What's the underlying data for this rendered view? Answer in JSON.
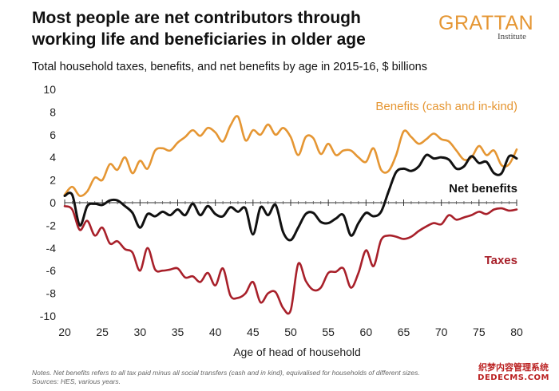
{
  "header": {
    "title_line1": "Most people are net contributors through",
    "title_line2": "working life and beneficiaries in older age",
    "logo_main": "GRATTAN",
    "logo_sub": "Institute"
  },
  "subtitle": "Total household taxes, benefits, and net benefits by age in 2015-16, $ billions",
  "notes_line1": "Notes. Net benefits refers to all tax paid minus all social transfers (cash and in kind), equivalised for households of different sizes.",
  "notes_line2": "Sources: HES, various years.",
  "watermark_line1": "织梦内容管理系统",
  "watermark_line2": "DEDECMS.COM",
  "chart_data": {
    "type": "line",
    "title": "Total household taxes, benefits, and net benefits by age in 2015-16, $ billions",
    "xlabel": "Age of head of household",
    "ylabel": "",
    "xlim": [
      20,
      80
    ],
    "ylim": [
      -10,
      10
    ],
    "xticks": [
      20,
      25,
      30,
      35,
      40,
      45,
      50,
      55,
      60,
      65,
      70,
      75,
      80
    ],
    "yticks": [
      10,
      8,
      6,
      4,
      2,
      0,
      -2,
      -4,
      -6,
      -8,
      -10
    ],
    "grid": "vertical ticks at zero line",
    "x": [
      20,
      21,
      22,
      23,
      24,
      25,
      26,
      27,
      28,
      29,
      30,
      31,
      32,
      33,
      34,
      35,
      36,
      37,
      38,
      39,
      40,
      41,
      42,
      43,
      44,
      45,
      46,
      47,
      48,
      49,
      50,
      51,
      52,
      53,
      54,
      55,
      56,
      57,
      58,
      59,
      60,
      61,
      62,
      63,
      64,
      65,
      66,
      67,
      68,
      69,
      70,
      71,
      72,
      73,
      74,
      75,
      76,
      77,
      78,
      79,
      80
    ],
    "series": [
      {
        "name": "Benefits (cash and in-kind)",
        "color": "#e59633",
        "values": [
          0.7,
          1.4,
          0.6,
          1.0,
          2.2,
          2.0,
          3.4,
          2.9,
          4.0,
          2.6,
          3.7,
          3.0,
          4.6,
          4.8,
          4.6,
          5.3,
          5.8,
          6.4,
          5.9,
          6.6,
          6.2,
          5.4,
          6.8,
          7.6,
          5.5,
          6.4,
          6.0,
          6.9,
          6.0,
          6.6,
          5.8,
          4.2,
          5.8,
          5.7,
          4.3,
          5.2,
          4.2,
          4.6,
          4.6,
          4.0,
          3.6,
          4.8,
          2.9,
          2.8,
          4.2,
          6.3,
          5.8,
          5.2,
          5.6,
          6.1,
          5.6,
          5.4,
          4.6,
          3.8,
          4.0,
          5.0,
          4.2,
          4.6,
          3.3,
          3.4,
          4.7
        ]
      },
      {
        "name": "Net benefits",
        "color": "#111111",
        "values": [
          0.6,
          0.7,
          -2.0,
          -0.3,
          -0.1,
          -0.2,
          0.2,
          0.2,
          -0.3,
          -0.9,
          -2.2,
          -1.0,
          -1.2,
          -0.8,
          -1.1,
          -0.6,
          -1.1,
          -0.1,
          -1.1,
          -0.3,
          -1.0,
          -1.2,
          -0.4,
          -0.8,
          -0.5,
          -2.8,
          -0.4,
          -1.1,
          -0.2,
          -2.6,
          -3.3,
          -2.2,
          -1.0,
          -0.9,
          -1.7,
          -1.8,
          -1.4,
          -1.1,
          -2.9,
          -1.8,
          -0.9,
          -1.2,
          -0.8,
          1.0,
          2.7,
          3.0,
          2.8,
          3.2,
          4.2,
          3.9,
          4.0,
          3.8,
          3.0,
          3.2,
          4.1,
          3.5,
          3.6,
          2.6,
          2.6,
          4.1,
          3.9
        ]
      },
      {
        "name": "Taxes",
        "color": "#a8202a",
        "values": [
          -0.3,
          -0.6,
          -2.4,
          -1.6,
          -2.9,
          -2.2,
          -3.6,
          -3.4,
          -4.1,
          -4.4,
          -6.0,
          -4.0,
          -5.9,
          -6.0,
          -5.9,
          -5.8,
          -6.6,
          -6.5,
          -7.0,
          -6.2,
          -7.3,
          -5.8,
          -8.2,
          -8.4,
          -8.0,
          -7.0,
          -8.8,
          -8.0,
          -7.9,
          -9.3,
          -9.5,
          -5.4,
          -6.9,
          -7.7,
          -7.5,
          -6.2,
          -6.1,
          -5.8,
          -7.5,
          -6.2,
          -4.2,
          -5.6,
          -3.3,
          -2.9,
          -3.0,
          -3.2,
          -3.0,
          -2.5,
          -2.1,
          -1.8,
          -1.9,
          -1.1,
          -1.5,
          -1.3,
          -1.1,
          -0.8,
          -1.0,
          -0.6,
          -0.5,
          -0.7,
          -0.6
        ]
      }
    ],
    "annotations": [
      {
        "text": "Benefits (cash and in-kind)",
        "series": "Benefits (cash and in-kind)"
      },
      {
        "text": "Net benefits",
        "series": "Net benefits"
      },
      {
        "text": "Taxes",
        "series": "Taxes"
      }
    ]
  }
}
